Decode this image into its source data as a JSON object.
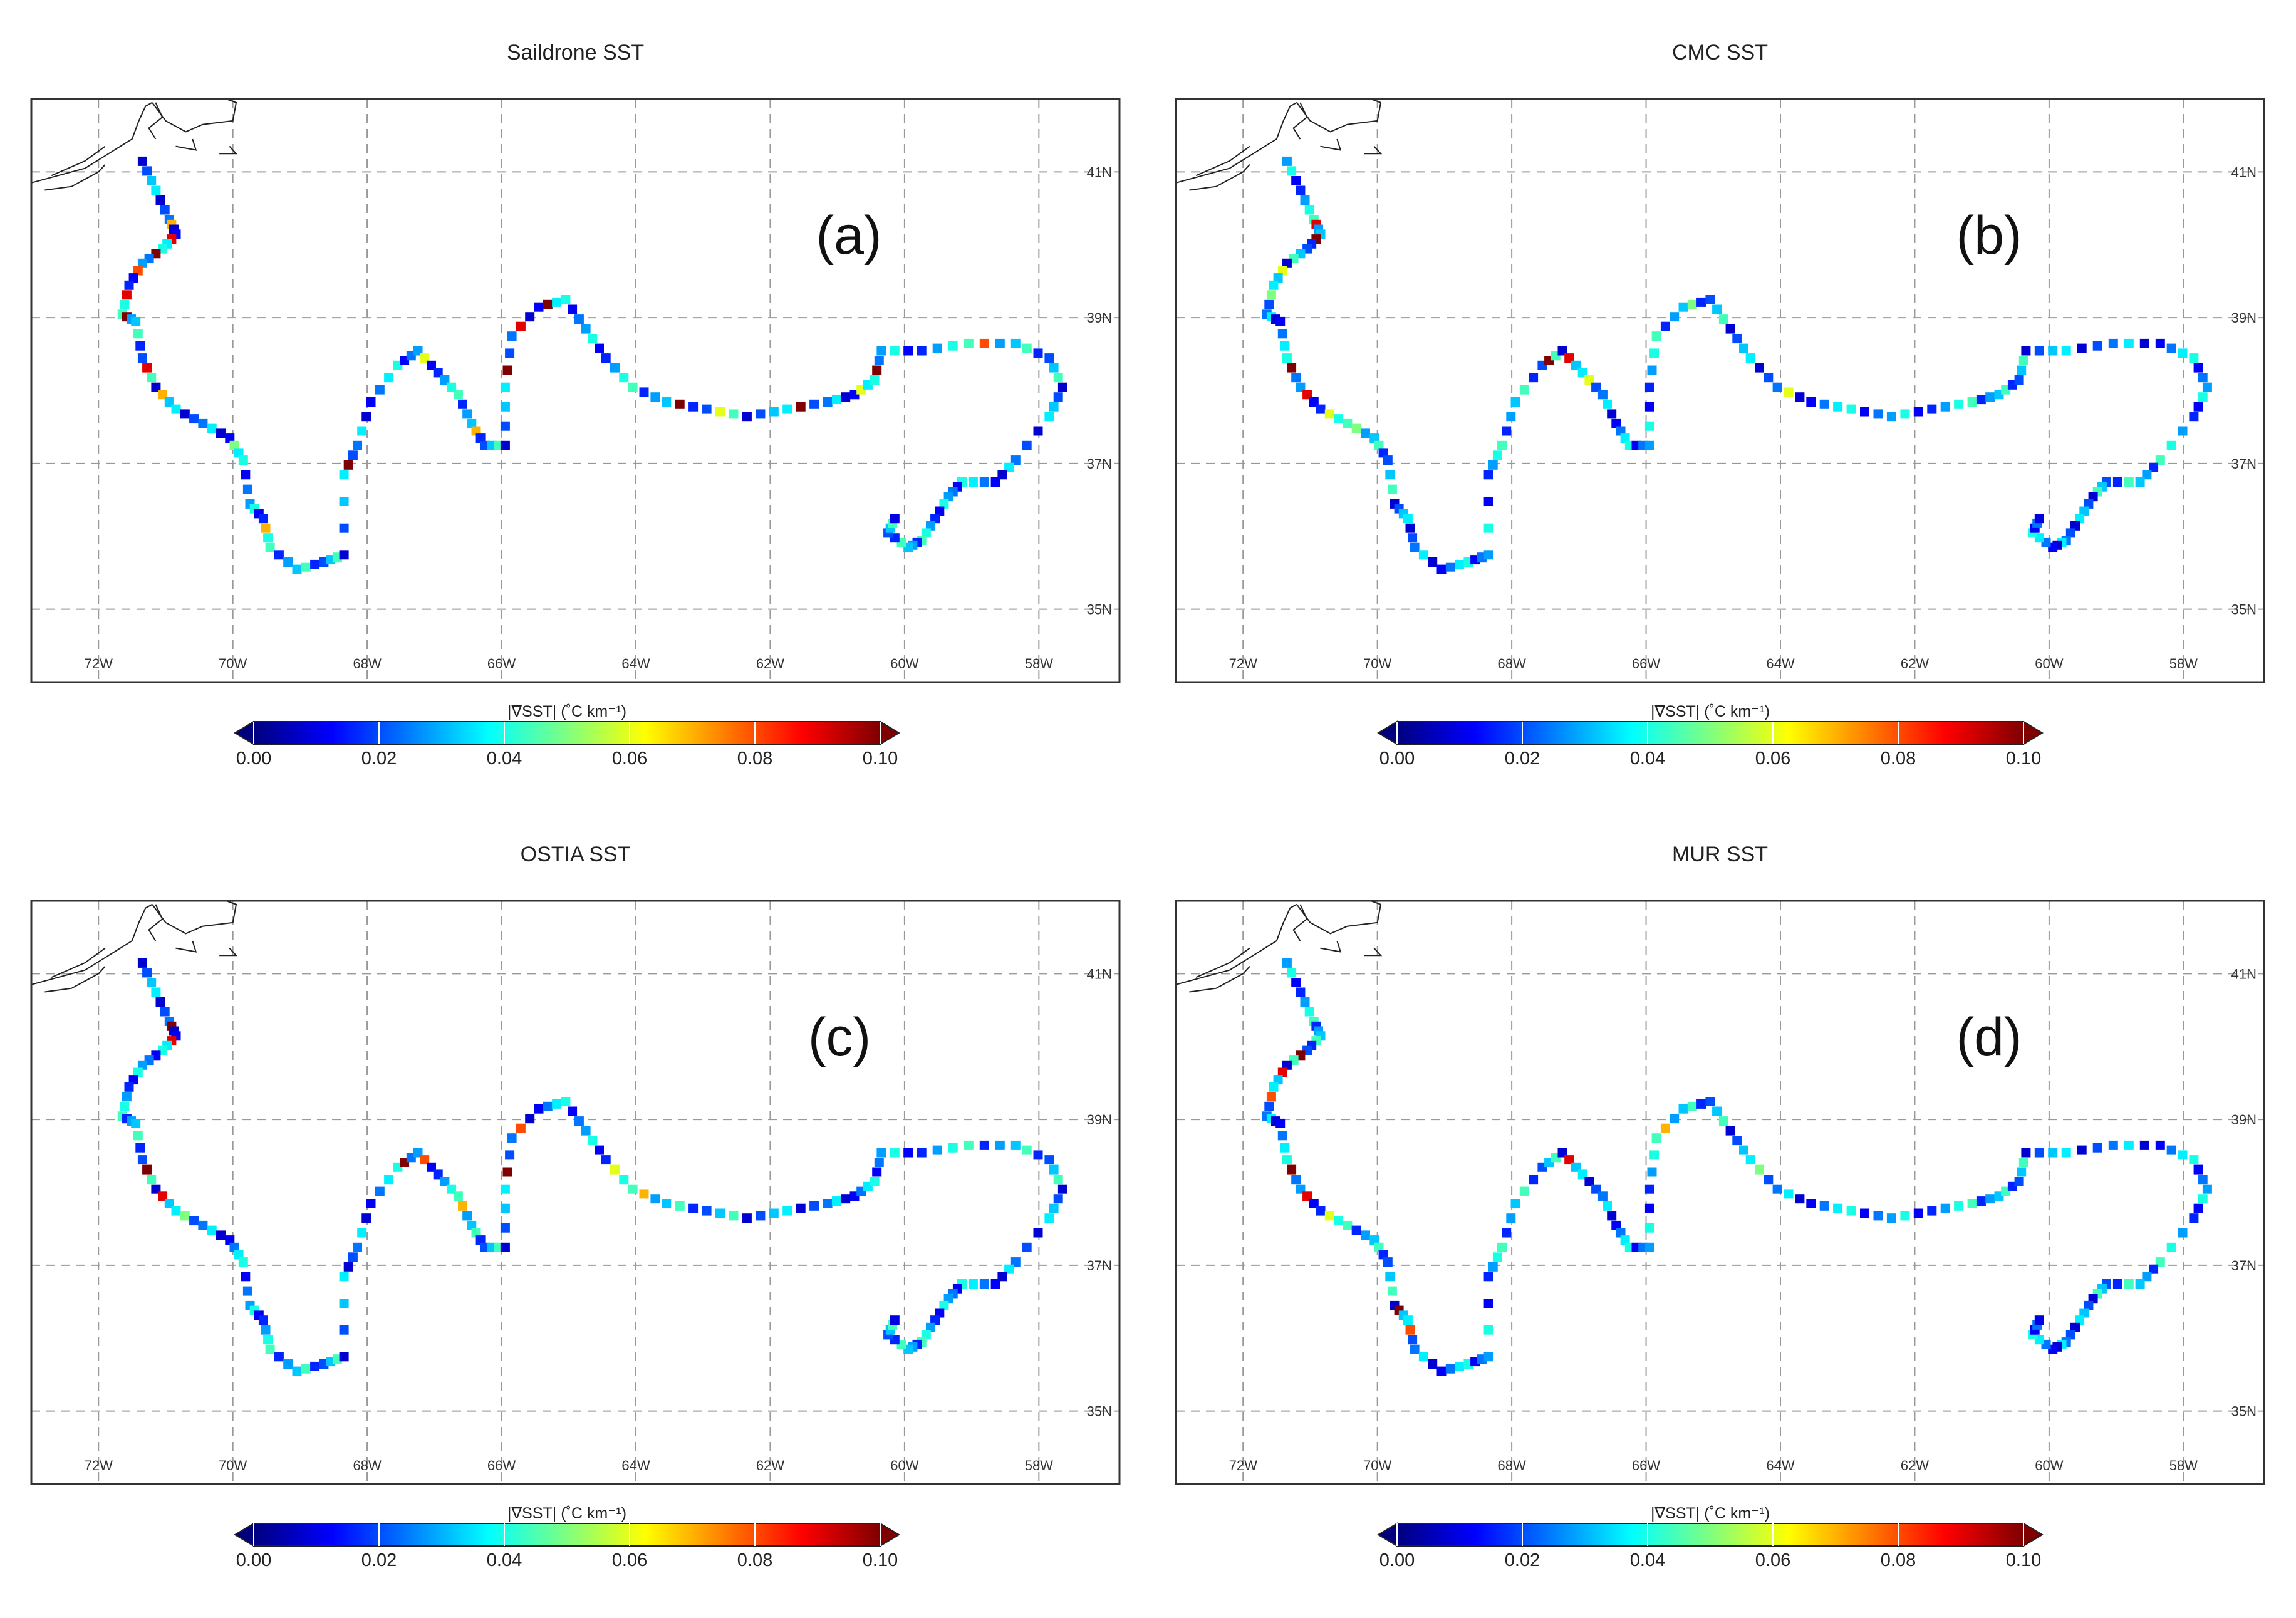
{
  "figure": {
    "panels": [
      {
        "title": "Saildrone SST",
        "label": "(a)"
      },
      {
        "title": "CMC SST",
        "label": "(b)"
      },
      {
        "title": "OSTIA SST",
        "label": "(c)"
      },
      {
        "title": "MUR SST",
        "label": "(d)"
      }
    ],
    "lon_ticks": [
      "72W",
      "70W",
      "68W",
      "66W",
      "64W",
      "62W",
      "60W",
      "58W"
    ],
    "lat_ticks": [
      "41N",
      "39N",
      "37N",
      "35N"
    ],
    "colorbar": {
      "label": "|∇SST| (˚C km⁻¹)",
      "ticks": [
        "0.00",
        "0.02",
        "0.04",
        "0.06",
        "0.08",
        "0.10"
      ],
      "range": [
        0,
        0.1
      ],
      "extend": "both",
      "colormap": "jet",
      "colors": [
        "#00007f",
        "#0000ff",
        "#007fff",
        "#00ffff",
        "#7fff7f",
        "#ffff00",
        "#ff7f00",
        "#ff0000",
        "#7f0000"
      ]
    },
    "colors": {
      "coast": "#222222",
      "grid": "#999999",
      "frame": "#333333"
    }
  },
  "map_data": {
    "lon_range": [
      -73.0,
      -56.8
    ],
    "lat_range": [
      34.0,
      42.0
    ],
    "grid_lon": [
      -72,
      -70,
      -68,
      -66,
      -64,
      -62,
      -60,
      -58
    ],
    "grid_lat": [
      35,
      37,
      39,
      41
    ],
    "track": [
      [
        -71.35,
        41.15
      ],
      [
        -71.15,
        40.75
      ],
      [
        -70.95,
        40.35
      ],
      [
        -70.85,
        40.15
      ],
      [
        -71.05,
        39.95
      ],
      [
        -71.35,
        39.75
      ],
      [
        -71.55,
        39.45
      ],
      [
        -71.65,
        39.05
      ],
      [
        -71.45,
        38.95
      ],
      [
        -71.35,
        38.45
      ],
      [
        -71.15,
        38.05
      ],
      [
        -70.85,
        37.75
      ],
      [
        -70.45,
        37.55
      ],
      [
        -70.05,
        37.35
      ],
      [
        -69.85,
        37.05
      ],
      [
        -69.75,
        36.45
      ],
      [
        -69.55,
        36.25
      ],
      [
        -69.45,
        35.85
      ],
      [
        -69.05,
        35.55
      ],
      [
        -68.65,
        35.65
      ],
      [
        -68.35,
        35.75
      ],
      [
        -68.35,
        36.85
      ],
      [
        -68.15,
        37.25
      ],
      [
        -67.95,
        37.85
      ],
      [
        -67.55,
        38.35
      ],
      [
        -67.25,
        38.55
      ],
      [
        -66.95,
        38.25
      ],
      [
        -66.65,
        37.95
      ],
      [
        -66.45,
        37.55
      ],
      [
        -66.25,
        37.25
      ],
      [
        -65.95,
        37.25
      ],
      [
        -65.95,
        38.05
      ],
      [
        -65.85,
        38.75
      ],
      [
        -65.45,
        39.15
      ],
      [
        -65.05,
        39.25
      ],
      [
        -64.75,
        38.85
      ],
      [
        -64.45,
        38.45
      ],
      [
        -64.05,
        38.05
      ],
      [
        -63.55,
        37.85
      ],
      [
        -62.95,
        37.75
      ],
      [
        -62.35,
        37.65
      ],
      [
        -61.75,
        37.75
      ],
      [
        -61.15,
        37.85
      ],
      [
        -60.75,
        37.95
      ],
      [
        -60.45,
        38.15
      ],
      [
        -60.35,
        38.55
      ],
      [
        -59.75,
        38.55
      ],
      [
        -59.05,
        38.65
      ],
      [
        -58.35,
        38.65
      ],
      [
        -57.85,
        38.45
      ],
      [
        -57.65,
        38.05
      ],
      [
        -57.85,
        37.65
      ],
      [
        -58.35,
        37.05
      ],
      [
        -58.65,
        36.75
      ],
      [
        -59.15,
        36.75
      ],
      [
        -59.35,
        36.55
      ],
      [
        -59.55,
        36.25
      ],
      [
        -59.75,
        35.95
      ],
      [
        -59.95,
        35.85
      ],
      [
        -60.25,
        36.05
      ],
      [
        -60.15,
        36.25
      ]
    ],
    "panels": [
      {
        "hot": [
          [
            2,
            0.07
          ],
          [
            3,
            0.09
          ],
          [
            4,
            0.1
          ],
          [
            5,
            0.08
          ],
          [
            6,
            0.09
          ],
          [
            7,
            0.1
          ],
          [
            9,
            0.09
          ],
          [
            10,
            0.07
          ],
          [
            13,
            0.05
          ],
          [
            16,
            0.07
          ],
          [
            21,
            0.1
          ],
          [
            25,
            0.06
          ],
          [
            28,
            0.07
          ],
          [
            31,
            0.1
          ],
          [
            32,
            0.09
          ],
          [
            33,
            0.1
          ],
          [
            38,
            0.1
          ],
          [
            39,
            0.06
          ],
          [
            41,
            0.1
          ],
          [
            43,
            0.06
          ],
          [
            44,
            0.1
          ],
          [
            47,
            0.08
          ]
        ]
      },
      {
        "hot": [
          [
            2,
            0.09
          ],
          [
            3,
            0.1
          ],
          [
            5,
            0.06
          ],
          [
            6,
            0.05
          ],
          [
            9,
            0.1
          ],
          [
            10,
            0.09
          ],
          [
            11,
            0.06
          ],
          [
            12,
            0.05
          ],
          [
            24,
            0.1
          ],
          [
            25,
            0.09
          ],
          [
            26,
            0.06
          ],
          [
            33,
            0.05
          ],
          [
            37,
            0.06
          ]
        ]
      },
      {
        "hot": [
          [
            2,
            0.1
          ],
          [
            3,
            0.09
          ],
          [
            9,
            0.1
          ],
          [
            10,
            0.09
          ],
          [
            11,
            0.05
          ],
          [
            24,
            0.1
          ],
          [
            25,
            0.08
          ],
          [
            27,
            0.07
          ],
          [
            31,
            0.1
          ],
          [
            32,
            0.08
          ],
          [
            36,
            0.06
          ],
          [
            37,
            0.07
          ]
        ]
      },
      {
        "hot": [
          [
            4,
            0.1
          ],
          [
            5,
            0.09
          ],
          [
            6,
            0.08
          ],
          [
            9,
            0.1
          ],
          [
            10,
            0.09
          ],
          [
            11,
            0.06
          ],
          [
            15,
            0.1
          ],
          [
            16,
            0.08
          ],
          [
            25,
            0.09
          ],
          [
            32,
            0.07
          ],
          [
            36,
            0.05
          ]
        ]
      }
    ]
  }
}
